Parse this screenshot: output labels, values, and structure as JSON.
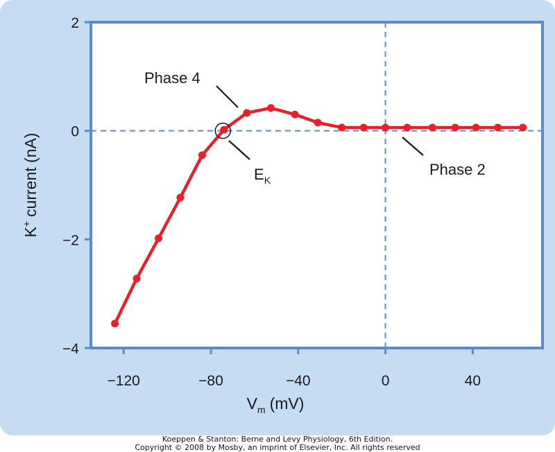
{
  "chart_data": {
    "type": "line",
    "title": "",
    "xlabel": {
      "main": "V",
      "sub": "m",
      "unit": "(mV)"
    },
    "ylabel": {
      "main": "K",
      "sup": "+",
      "rest": "current (nA)"
    },
    "xlim": [
      -135,
      72
    ],
    "ylim": [
      -4,
      2
    ],
    "xticks": [
      {
        "value": -120,
        "label": "−120"
      },
      {
        "value": -80,
        "label": "−80"
      },
      {
        "value": -40,
        "label": "−40"
      },
      {
        "value": 0,
        "label": "0"
      },
      {
        "value": 40,
        "label": "40"
      }
    ],
    "yticks": [
      {
        "value": 2,
        "label": "2"
      },
      {
        "value": 0,
        "label": "0"
      },
      {
        "value": -2,
        "label": "−2"
      },
      {
        "value": -4,
        "label": "−4"
      }
    ],
    "grid": false,
    "reference_lines": {
      "x": 0,
      "y": 0
    },
    "series": [
      {
        "x": [
          -124,
          -114,
          -104,
          -94,
          -84,
          -74,
          -63.5,
          -52.5,
          -41.5,
          -31,
          -20,
          -10,
          0,
          10,
          21.5,
          32,
          41.5,
          51.5,
          63
        ],
        "y": [
          -3.55,
          -2.72,
          -1.98,
          -1.23,
          -0.45,
          0.02,
          0.33,
          0.42,
          0.3,
          0.15,
          0.06,
          0.06,
          0.06,
          0.06,
          0.06,
          0.06,
          0.06,
          0.06,
          0.06
        ]
      }
    ],
    "annotations": [
      {
        "id": "phase4",
        "text": "Phase 4"
      },
      {
        "id": "ek",
        "main": "E",
        "sub": "K"
      },
      {
        "id": "phase2",
        "text": "Phase 2"
      }
    ],
    "colors": {
      "series": "#e8202a",
      "axes_frame": "#5b8ad0",
      "reference_line": "#5b8ad0",
      "panel_background": "#c5dcf3",
      "plot_background": "#ffffff"
    }
  },
  "credit": {
    "line1": "Koeppen & Stanton: Berne and Levy Physiology, 6th Edition.",
    "line2": "Copyright © 2008 by Mosby, an imprint of Elsevier, Inc. All rights reserved"
  }
}
